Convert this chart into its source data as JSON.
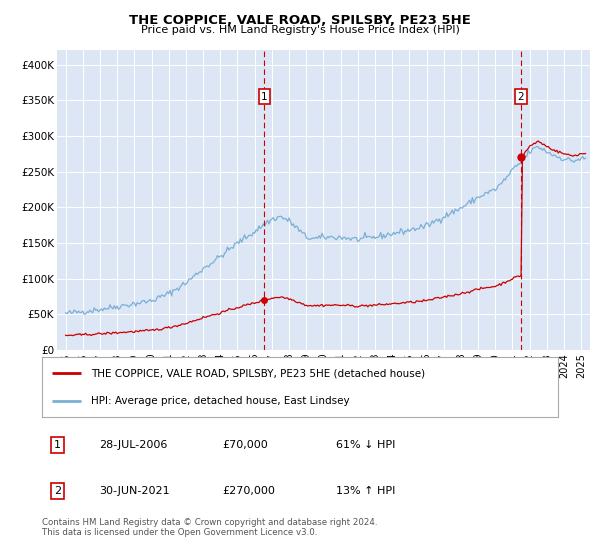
{
  "title": "THE COPPICE, VALE ROAD, SPILSBY, PE23 5HE",
  "subtitle": "Price paid vs. HM Land Registry's House Price Index (HPI)",
  "background_color": "#e8eef8",
  "plot_bg_color": "#dce6f5",
  "red_line_color": "#cc0000",
  "blue_line_color": "#7ab0d4",
  "grid_color": "#ffffff",
  "annotation1": {
    "label": "1",
    "vline_x": 2006.57,
    "red_y": 70000
  },
  "annotation2": {
    "label": "2",
    "vline_x": 2021.5,
    "red_y": 270000
  },
  "legend_red": "THE COPPICE, VALE ROAD, SPILSBY, PE23 5HE (detached house)",
  "legend_blue": "HPI: Average price, detached house, East Lindsey",
  "table_rows": [
    {
      "num": "1",
      "date": "28-JUL-2006",
      "price": "£70,000",
      "hpi": "61% ↓ HPI"
    },
    {
      "num": "2",
      "date": "30-JUN-2021",
      "price": "£270,000",
      "hpi": "13% ↑ HPI"
    }
  ],
  "footer": "Contains HM Land Registry data © Crown copyright and database right 2024.\nThis data is licensed under the Open Government Licence v3.0.",
  "ylim": [
    0,
    420000
  ],
  "xlim": [
    1994.5,
    2025.5
  ],
  "yticks": [
    0,
    50000,
    100000,
    150000,
    200000,
    250000,
    300000,
    350000,
    400000
  ],
  "xticks": [
    1995,
    1996,
    1997,
    1998,
    1999,
    2000,
    2001,
    2002,
    2003,
    2004,
    2005,
    2006,
    2007,
    2008,
    2009,
    2010,
    2011,
    2012,
    2013,
    2014,
    2015,
    2016,
    2017,
    2018,
    2019,
    2020,
    2021,
    2022,
    2023,
    2024,
    2025
  ]
}
